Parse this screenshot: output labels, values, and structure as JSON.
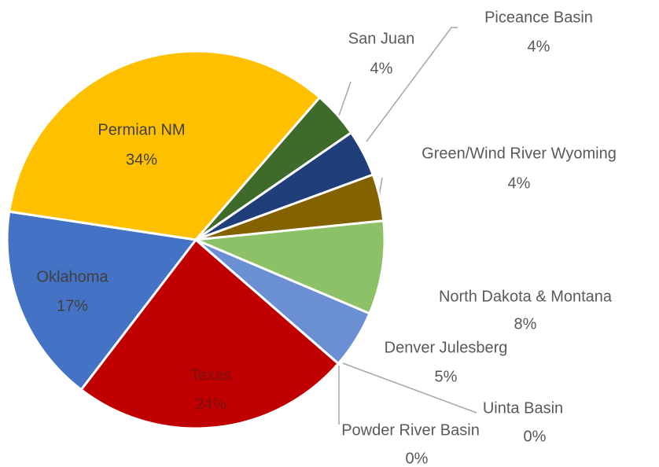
{
  "chart_data": {
    "type": "pie",
    "categories": [
      "San Juan",
      "Piceance Basin",
      "Green/Wind River Wyoming",
      "North Dakota & Montana",
      "Denver Julesberg",
      "Uinta Basin",
      "Powder River Basin",
      "Texas",
      "Oklahoma",
      "Permian NM"
    ],
    "values": [
      4,
      4,
      4,
      8,
      5,
      0,
      0,
      24,
      17,
      34
    ],
    "value_labels": [
      "4%",
      "4%",
      "4%",
      "8%",
      "5%",
      "0%",
      "0%",
      "24%",
      "17%",
      "34%"
    ],
    "colors": [
      "#3f6b2a",
      "#203f7a",
      "#846200",
      "#8cc168",
      "#6a8fd2",
      "#a9c0e8",
      "#2f5597",
      "#c00000",
      "#4472c4",
      "#ffc000"
    ]
  }
}
